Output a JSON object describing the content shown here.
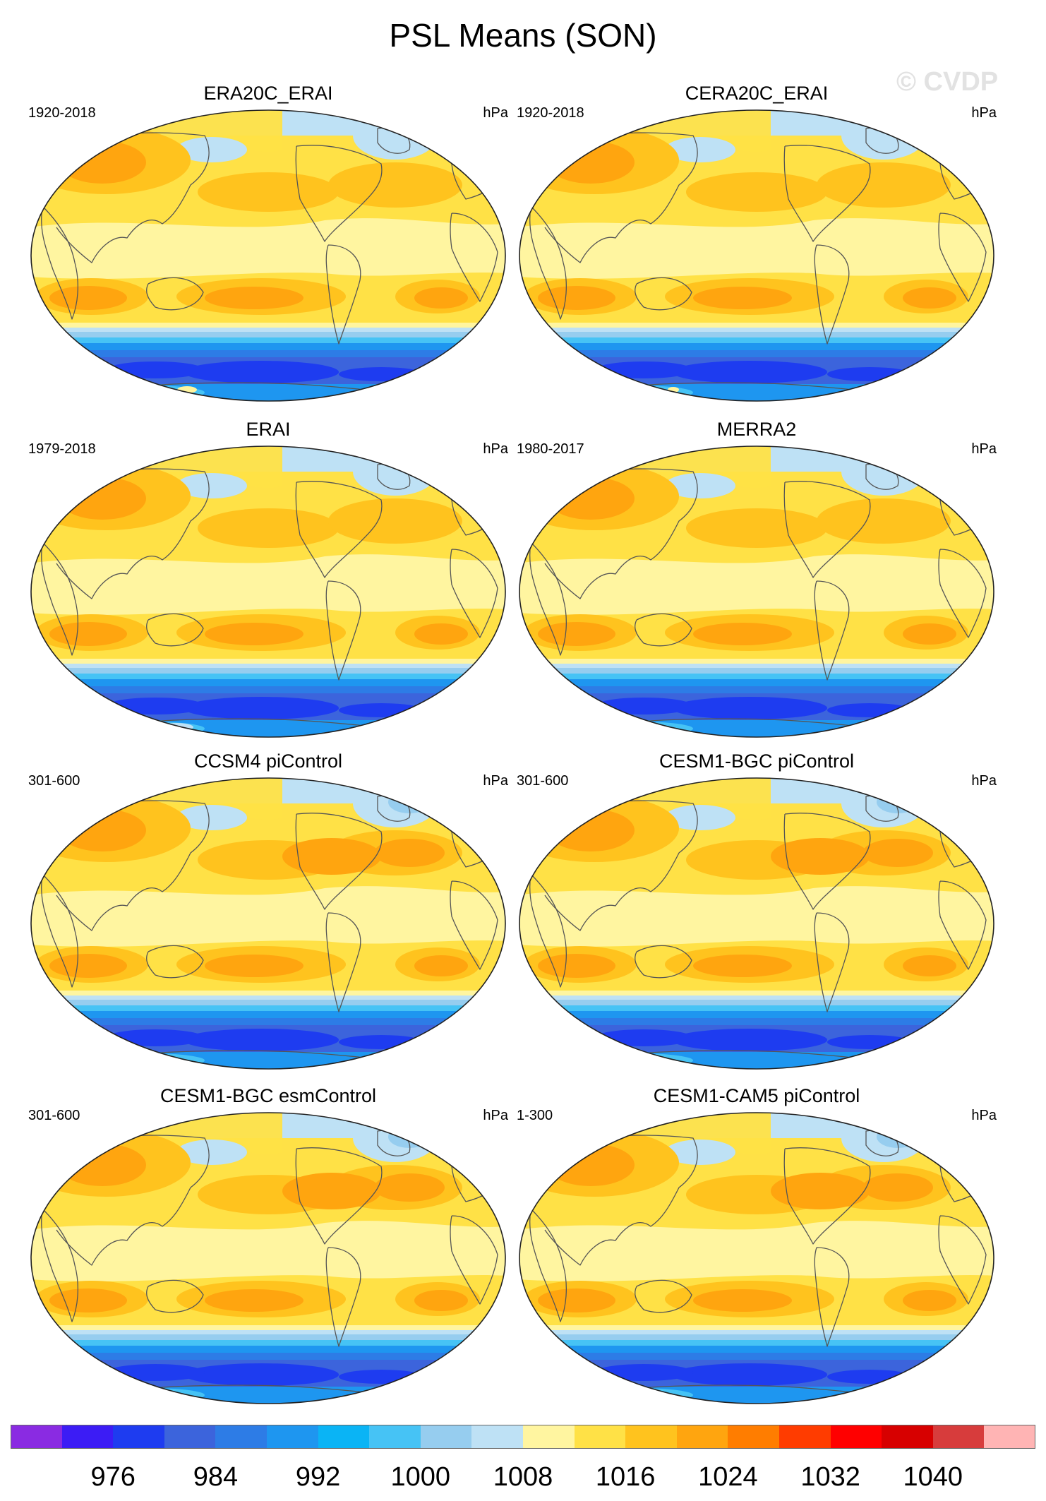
{
  "figure": {
    "title": "PSL Means (SON)",
    "watermark": "© CVDP"
  },
  "panels": [
    {
      "title": "ERA20C_ERAI",
      "period": "1920-2018",
      "unit": "hPa",
      "variant": "reanalysis-20c",
      "antarctic_anomaly": "yellow-patch"
    },
    {
      "title": "CERA20C_ERAI",
      "period": "1920-2018",
      "unit": "hPa",
      "variant": "reanalysis-20c",
      "antarctic_anomaly": "small-yellow-patch"
    },
    {
      "title": "ERAI",
      "period": "1979-2018",
      "unit": "hPa",
      "variant": "reanalysis-modern",
      "antarctic_anomaly": "light-patch"
    },
    {
      "title": "MERRA2",
      "period": "1980-2017",
      "unit": "hPa",
      "variant": "reanalysis-modern",
      "antarctic_anomaly": "none"
    },
    {
      "title": "CCSM4 piControl",
      "period": "301-600",
      "unit": "hPa",
      "variant": "model",
      "antarctic_anomaly": "none"
    },
    {
      "title": "CESM1-BGC piControl",
      "period": "301-600",
      "unit": "hPa",
      "variant": "model",
      "antarctic_anomaly": "none"
    },
    {
      "title": "CESM1-BGC esmControl",
      "period": "301-600",
      "unit": "hPa",
      "variant": "model",
      "antarctic_anomaly": "none"
    },
    {
      "title": "CESM1-CAM5 piControl",
      "period": "1-300",
      "unit": "hPa",
      "variant": "model",
      "antarctic_anomaly": "none"
    }
  ],
  "colorbar": {
    "unit": "hPa",
    "colors": [
      "#8a2be2",
      "#3c1cf5",
      "#1e3cf0",
      "#3c64dc",
      "#2d7ce6",
      "#1e96f0",
      "#0ab4f5",
      "#46c3f5",
      "#96cdef",
      "#bee1f5",
      "#fff5a0",
      "#ffe146",
      "#ffc31e",
      "#ffa50f",
      "#ff7d00",
      "#ff3c00",
      "#ff0000",
      "#d70000",
      "#d73c3c",
      "#ffb4b4"
    ],
    "labels": [
      {
        "text": "976",
        "boundary": 2
      },
      {
        "text": "984",
        "boundary": 4
      },
      {
        "text": "992",
        "boundary": 6
      },
      {
        "text": "1000",
        "boundary": 8
      },
      {
        "text": "1008",
        "boundary": 10
      },
      {
        "text": "1016",
        "boundary": 12
      },
      {
        "text": "1024",
        "boundary": 14
      },
      {
        "text": "1032",
        "boundary": 16
      },
      {
        "text": "1040",
        "boundary": 18
      }
    ]
  }
}
